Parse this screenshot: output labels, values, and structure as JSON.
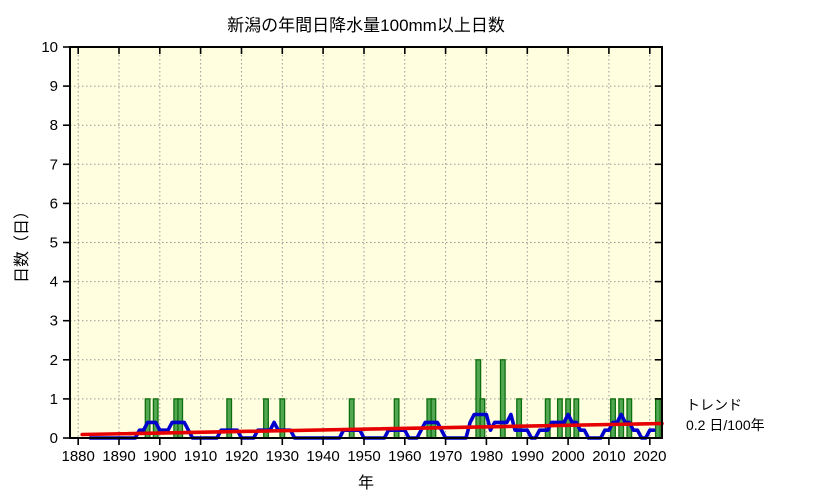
{
  "chart_data": {
    "type": "bar",
    "title": "新潟の年間日降水量100mm以上日数",
    "xlabel": "年",
    "ylabel": "日数（日）",
    "xlim": [
      1878,
      2023
    ],
    "ylim": [
      0,
      10
    ],
    "x_ticks": [
      1880,
      1890,
      1900,
      1910,
      1920,
      1930,
      1940,
      1950,
      1960,
      1970,
      1980,
      1990,
      2000,
      2010,
      2020
    ],
    "y_ticks": [
      0,
      1,
      2,
      3,
      4,
      5,
      6,
      7,
      8,
      9,
      10
    ],
    "grid": true,
    "plot_bg": "#ffffe0",
    "grid_color": "#999999",
    "axis_color": "#000000",
    "bars": {
      "name": "annual-days",
      "fill": "#52a852",
      "edge": "#0d6e0d",
      "years": [
        1897,
        1899,
        1904,
        1905,
        1917,
        1926,
        1930,
        1947,
        1958,
        1966,
        1967,
        1978,
        1979,
        1984,
        1988,
        1995,
        1998,
        2000,
        2002,
        2011,
        2013,
        2015,
        2022
      ],
      "values": [
        1,
        1,
        1,
        1,
        1,
        1,
        1,
        1,
        1,
        1,
        1,
        2,
        1,
        2,
        1,
        1,
        1,
        1,
        1,
        1,
        1,
        1,
        1
      ]
    },
    "running_mean": {
      "name": "5yr-running-mean",
      "color": "#0000cc",
      "points": [
        [
          1883,
          0
        ],
        [
          1894,
          0
        ],
        [
          1895,
          0.2
        ],
        [
          1896,
          0.2
        ],
        [
          1897,
          0.4
        ],
        [
          1899,
          0.4
        ],
        [
          1900,
          0.2
        ],
        [
          1902,
          0.2
        ],
        [
          1903,
          0.4
        ],
        [
          1906,
          0.4
        ],
        [
          1907,
          0.2
        ],
        [
          1908,
          0
        ],
        [
          1914,
          0
        ],
        [
          1915,
          0.2
        ],
        [
          1919,
          0.2
        ],
        [
          1920,
          0
        ],
        [
          1923,
          0
        ],
        [
          1924,
          0.2
        ],
        [
          1927,
          0.2
        ],
        [
          1928,
          0.4
        ],
        [
          1929,
          0.2
        ],
        [
          1932,
          0.2
        ],
        [
          1933,
          0
        ],
        [
          1944,
          0
        ],
        [
          1945,
          0.2
        ],
        [
          1949,
          0.2
        ],
        [
          1950,
          0
        ],
        [
          1955,
          0
        ],
        [
          1956,
          0.2
        ],
        [
          1960,
          0.2
        ],
        [
          1961,
          0
        ],
        [
          1963,
          0
        ],
        [
          1964,
          0.2
        ],
        [
          1965,
          0.4
        ],
        [
          1968,
          0.4
        ],
        [
          1969,
          0.2
        ],
        [
          1970,
          0
        ],
        [
          1975,
          0
        ],
        [
          1976,
          0.4
        ],
        [
          1977,
          0.6
        ],
        [
          1980,
          0.6
        ],
        [
          1981,
          0.2
        ],
        [
          1982,
          0.4
        ],
        [
          1985,
          0.4
        ],
        [
          1986,
          0.6
        ],
        [
          1987,
          0.2
        ],
        [
          1990,
          0.2
        ],
        [
          1991,
          0
        ],
        [
          1992,
          0
        ],
        [
          1993,
          0.2
        ],
        [
          1995,
          0.2
        ],
        [
          1996,
          0.4
        ],
        [
          1999,
          0.4
        ],
        [
          2000,
          0.6
        ],
        [
          2001,
          0.4
        ],
        [
          2002,
          0.4
        ],
        [
          2003,
          0.2
        ],
        [
          2004,
          0.2
        ],
        [
          2005,
          0
        ],
        [
          2008,
          0
        ],
        [
          2009,
          0.2
        ],
        [
          2010,
          0.2
        ],
        [
          2011,
          0.4
        ],
        [
          2012,
          0.4
        ],
        [
          2013,
          0.6
        ],
        [
          2014,
          0.4
        ],
        [
          2015,
          0.4
        ],
        [
          2016,
          0.2
        ],
        [
          2017,
          0.2
        ],
        [
          2018,
          0
        ],
        [
          2019,
          0
        ],
        [
          2020,
          0.2
        ],
        [
          2021,
          0.2
        ]
      ]
    },
    "trend": {
      "name": "trend-line",
      "color": "#e60000",
      "x": [
        1881,
        2023
      ],
      "y": [
        0.09,
        0.37
      ],
      "rate_label_line1": "トレンド",
      "rate_label_line2": "0.2 日/100年"
    }
  }
}
